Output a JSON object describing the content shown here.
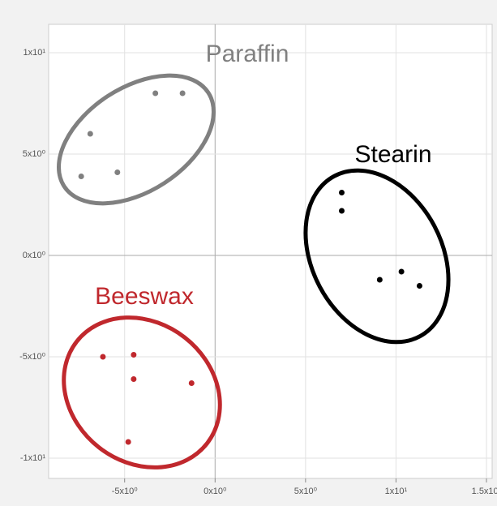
{
  "chart_data": {
    "type": "scatter",
    "xlim": [
      -9.2,
      15
    ],
    "ylim": [
      -11,
      11.4
    ],
    "xticks": [
      {
        "value": -5,
        "label": "-5x10⁰"
      },
      {
        "value": 0,
        "label": "0x10⁰"
      },
      {
        "value": 5,
        "label": "5x10⁰"
      },
      {
        "value": 10,
        "label": "1x10¹"
      },
      {
        "value": 15,
        "label": "1.5x10¹"
      }
    ],
    "yticks": [
      {
        "value": -10,
        "label": "-1x10¹"
      },
      {
        "value": -5,
        "label": "-5x10⁰"
      },
      {
        "value": 0,
        "label": "0x10⁰"
      },
      {
        "value": 5,
        "label": "5x10⁰"
      },
      {
        "value": 10,
        "label": "1x10¹"
      }
    ],
    "grid": true,
    "series": [
      {
        "name": "Paraffin",
        "color": "#808080",
        "x": [
          -3.3,
          -1.8,
          -6.9,
          -5.4,
          -7.4
        ],
        "values": [
          8.0,
          8.0,
          6.0,
          4.1,
          3.9
        ]
      },
      {
        "name": "Stearin",
        "color": "#000000",
        "x": [
          7.0,
          7.0,
          10.3,
          9.1,
          11.3
        ],
        "values": [
          3.1,
          2.2,
          -0.8,
          -1.2,
          -1.5
        ]
      },
      {
        "name": "Beeswax",
        "color": "#c0282d",
        "x": [
          -6.2,
          -4.5,
          -4.5,
          -1.3,
          -4.8
        ],
        "values": [
          -5.0,
          -4.9,
          -6.1,
          -6.3,
          -9.2
        ]
      }
    ]
  }
}
